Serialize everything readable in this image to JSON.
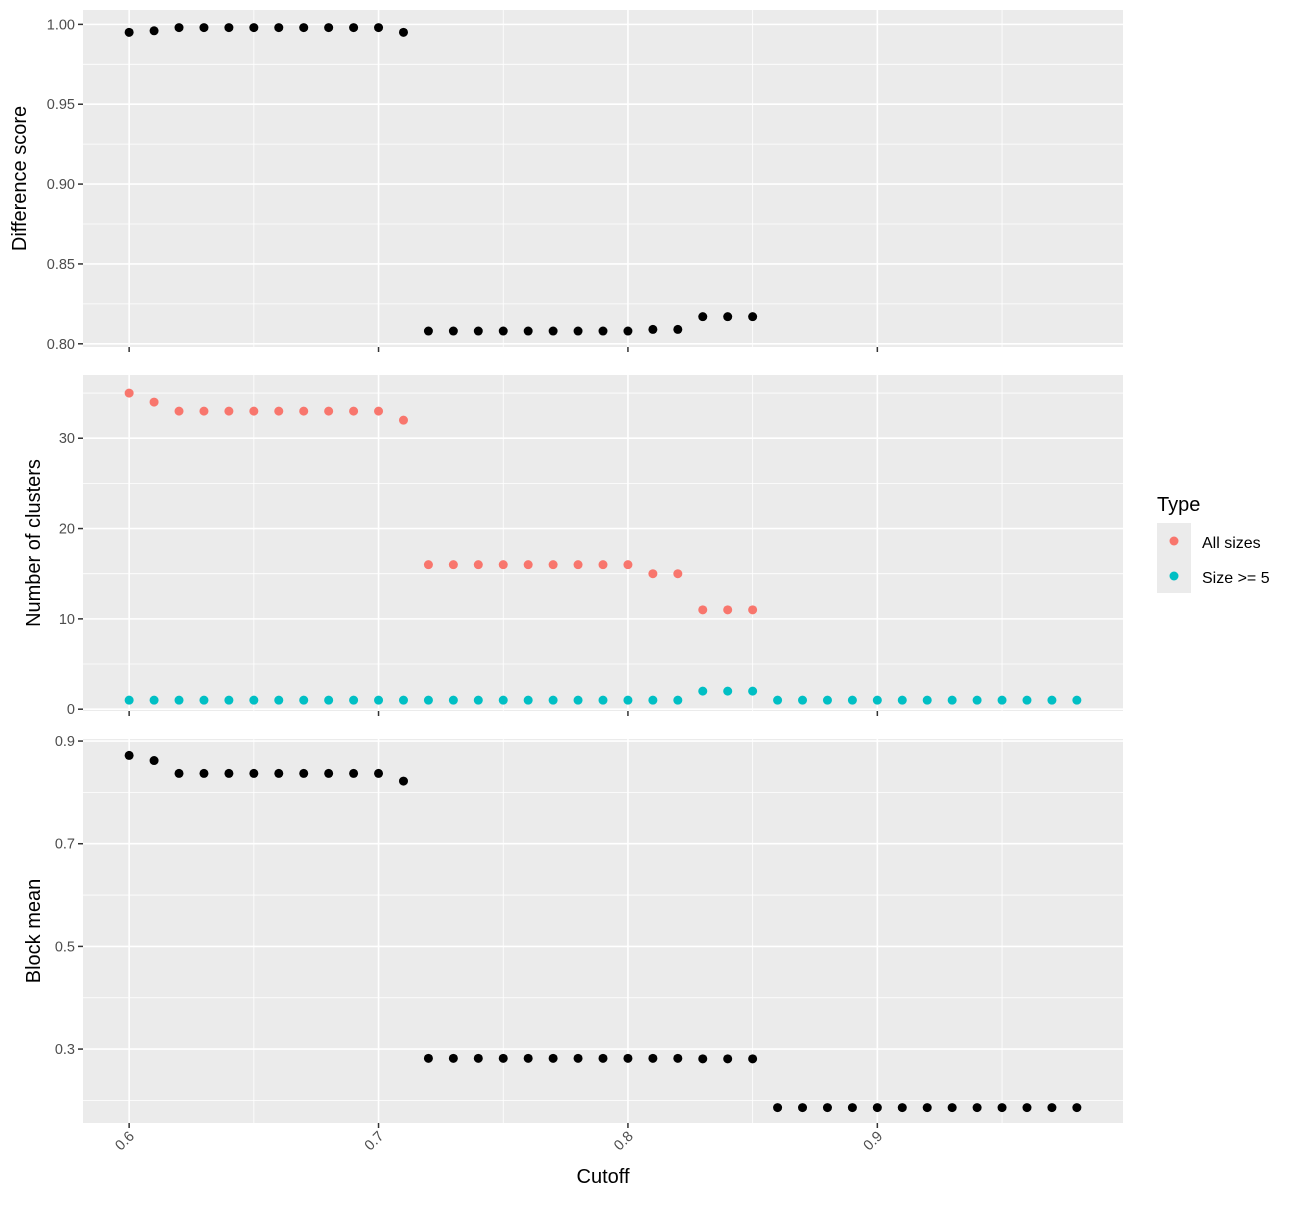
{
  "chart_data": {
    "type": "scatter",
    "xlabel": "Cutoff",
    "x_ticks": [
      "0.6",
      "0.7",
      "0.8",
      "0.9"
    ],
    "xlim": [
      0.5815,
      0.9985
    ],
    "grid": true,
    "legend": {
      "title": "Type",
      "placement": "right",
      "entries": [
        {
          "name": "All sizes",
          "color": "#F8766D"
        },
        {
          "name": "Size >= 5",
          "color": "#00BFC4"
        }
      ]
    },
    "panels": [
      {
        "ylabel": "Difference score",
        "ylim": [
          0.798,
          1.009
        ],
        "y_ticks": [
          "1.00",
          "0.95",
          "0.90",
          "0.85",
          "0.80"
        ],
        "y_tick_values": [
          1.0,
          0.95,
          0.9,
          0.85,
          0.8
        ],
        "series": [
          {
            "color": "#000000",
            "x": [
              0.6,
              0.61,
              0.62,
              0.63,
              0.64,
              0.65,
              0.66,
              0.67,
              0.68,
              0.69,
              0.7,
              0.71,
              0.72,
              0.73,
              0.74,
              0.75,
              0.76,
              0.77,
              0.78,
              0.79,
              0.8,
              0.81,
              0.82,
              0.83,
              0.84,
              0.85
            ],
            "y": [
              0.995,
              0.996,
              0.998,
              0.998,
              0.998,
              0.998,
              0.998,
              0.998,
              0.998,
              0.998,
              0.998,
              0.995,
              0.808,
              0.808,
              0.808,
              0.808,
              0.808,
              0.808,
              0.808,
              0.808,
              0.808,
              0.809,
              0.809,
              0.817,
              0.817,
              0.817
            ]
          }
        ]
      },
      {
        "ylabel": "Number of clusters",
        "ylim": [
          -0.2,
          37.0
        ],
        "y_ticks": [
          "30",
          "20",
          "10",
          "0"
        ],
        "y_tick_values": [
          30,
          20,
          10,
          0
        ],
        "series": [
          {
            "name": "All sizes",
            "color": "#F8766D",
            "x": [
              0.6,
              0.61,
              0.62,
              0.63,
              0.64,
              0.65,
              0.66,
              0.67,
              0.68,
              0.69,
              0.7,
              0.71,
              0.72,
              0.73,
              0.74,
              0.75,
              0.76,
              0.77,
              0.78,
              0.79,
              0.8,
              0.81,
              0.82,
              0.83,
              0.84,
              0.85
            ],
            "y": [
              35,
              34,
              33,
              33,
              33,
              33,
              33,
              33,
              33,
              33,
              33,
              32,
              16,
              16,
              16,
              16,
              16,
              16,
              16,
              16,
              16,
              15,
              15,
              11,
              11,
              11
            ]
          },
          {
            "name": "Size >= 5",
            "color": "#00BFC4",
            "x": [
              0.6,
              0.61,
              0.62,
              0.63,
              0.64,
              0.65,
              0.66,
              0.67,
              0.68,
              0.69,
              0.7,
              0.71,
              0.72,
              0.73,
              0.74,
              0.75,
              0.76,
              0.77,
              0.78,
              0.79,
              0.8,
              0.81,
              0.82,
              0.83,
              0.84,
              0.85,
              0.86,
              0.87,
              0.88,
              0.89,
              0.9,
              0.91,
              0.92,
              0.93,
              0.94,
              0.95,
              0.96,
              0.97,
              0.98
            ],
            "y": [
              1,
              1,
              1,
              1,
              1,
              1,
              1,
              1,
              1,
              1,
              1,
              1,
              1,
              1,
              1,
              1,
              1,
              1,
              1,
              1,
              1,
              1,
              1,
              2,
              2,
              2,
              1,
              1,
              1,
              1,
              1,
              1,
              1,
              1,
              1,
              1,
              1,
              1,
              1
            ]
          }
        ]
      },
      {
        "ylabel": "Block mean",
        "ylim": [
          0.156,
          0.904
        ],
        "y_ticks": [
          "0.9",
          "0.7",
          "0.5",
          "0.3"
        ],
        "y_tick_values": [
          0.9,
          0.7,
          0.5,
          0.3
        ],
        "series": [
          {
            "color": "#000000",
            "x": [
              0.6,
              0.61,
              0.62,
              0.63,
              0.64,
              0.65,
              0.66,
              0.67,
              0.68,
              0.69,
              0.7,
              0.71,
              0.72,
              0.73,
              0.74,
              0.75,
              0.76,
              0.77,
              0.78,
              0.79,
              0.8,
              0.81,
              0.82,
              0.83,
              0.84,
              0.85,
              0.86,
              0.87,
              0.88,
              0.89,
              0.9,
              0.91,
              0.92,
              0.93,
              0.94,
              0.95,
              0.96,
              0.97,
              0.98
            ],
            "y": [
              0.872,
              0.862,
              0.837,
              0.837,
              0.837,
              0.837,
              0.837,
              0.837,
              0.837,
              0.837,
              0.837,
              0.822,
              0.282,
              0.282,
              0.282,
              0.282,
              0.282,
              0.282,
              0.282,
              0.282,
              0.282,
              0.282,
              0.282,
              0.281,
              0.281,
              0.281,
              0.186,
              0.186,
              0.186,
              0.186,
              0.186,
              0.186,
              0.186,
              0.186,
              0.186,
              0.186,
              0.186,
              0.186,
              0.186
            ]
          }
        ]
      }
    ]
  }
}
